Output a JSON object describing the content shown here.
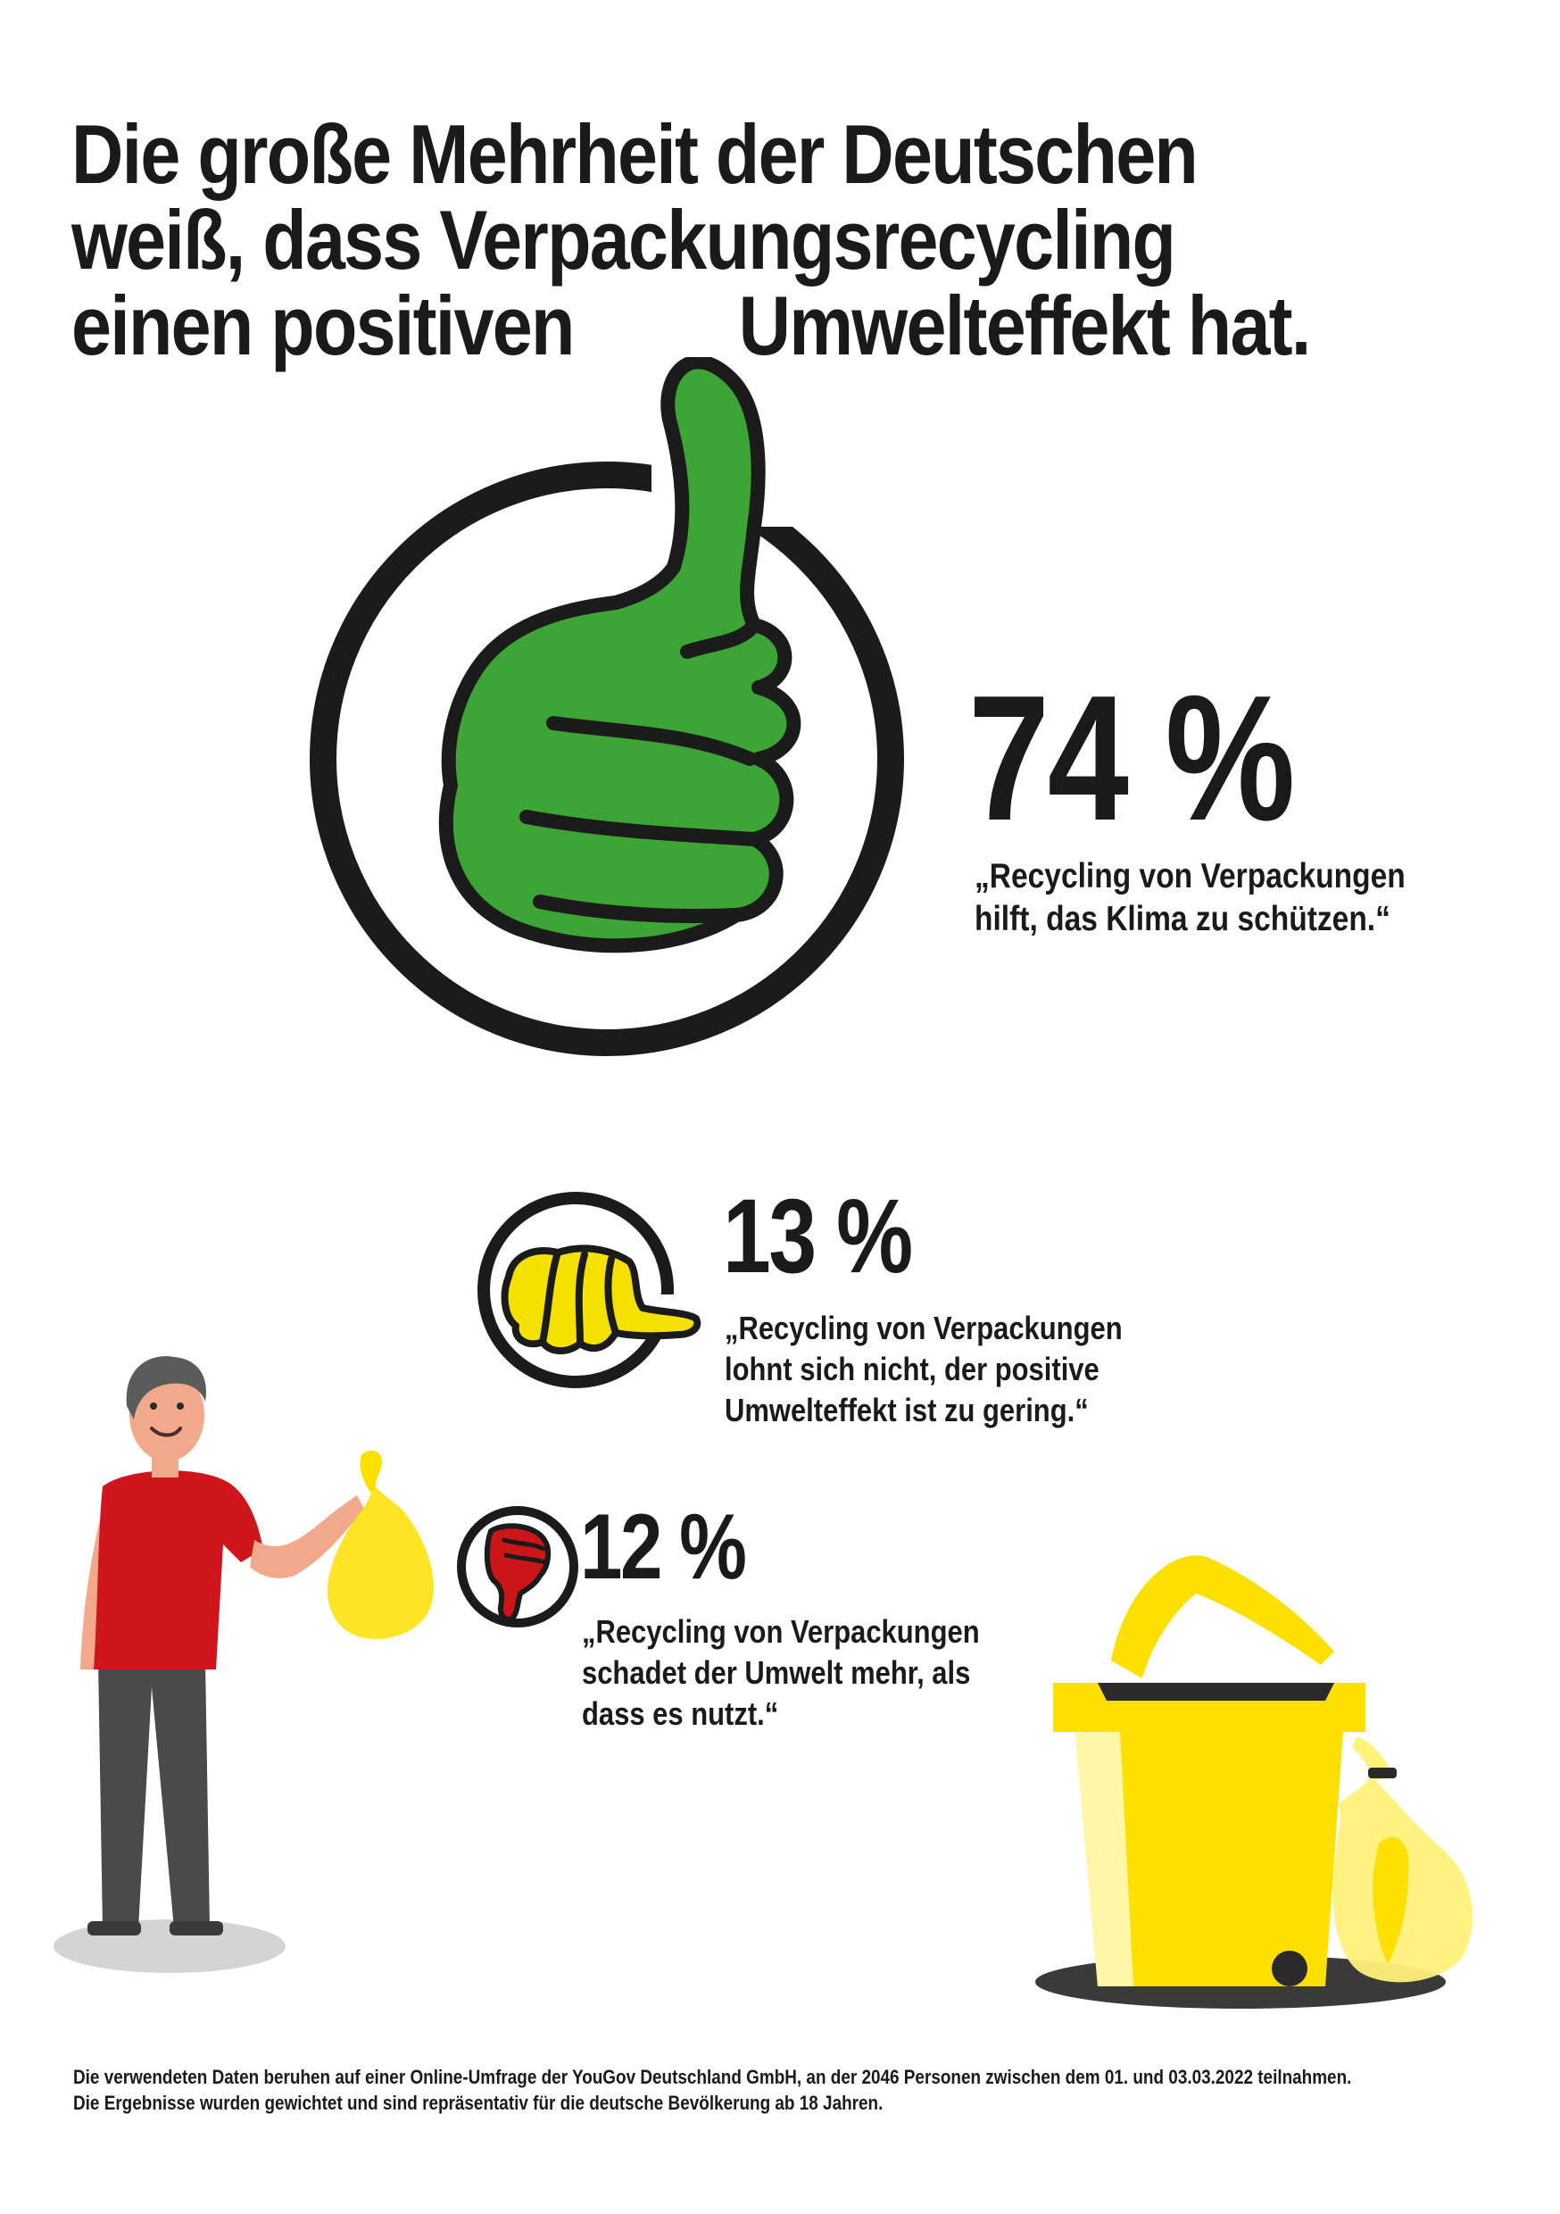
{
  "headline": {
    "line1": "Die große Mehrheit der Deutschen",
    "line2": "weiß, dass Verpackungsrecycling",
    "line3_part1": "einen positiven",
    "line3_part2": "Umwelteffekt hat."
  },
  "chart_data": {
    "type": "table",
    "title": "Die große Mehrheit der Deutschen weiß, dass Verpackungsrecycling einen positiven Umwelteffekt hat.",
    "rows": [
      {
        "percent_label": "74 %",
        "value": 74,
        "quote_lines": [
          "„Recycling von Verpackungen",
          "hilft, das Klima zu schützen.“"
        ]
      },
      {
        "percent_label": "13 %",
        "value": 13,
        "quote_lines": [
          "„Recycling von Verpackungen",
          "lohnt sich nicht, der positive",
          "Umwelteffekt ist zu gering.“"
        ]
      },
      {
        "percent_label": "12 %",
        "value": 12,
        "quote_lines": [
          "„Recycling von Verpackungen",
          "schadet der Umwelt mehr, als",
          "dass es nutzt.“"
        ]
      }
    ]
  },
  "icons": {
    "positive": "thumbs-up-icon",
    "neutral": "thumbs-sideways-icon",
    "negative": "thumbs-down-icon"
  },
  "colors": {
    "positive": "#3da535",
    "neutral": "#f5e100",
    "negative": "#cc1518",
    "bin": "#fde000",
    "shirt": "#cf161c"
  },
  "footnote": {
    "line1": "Die verwendeten Daten beruhen auf einer Online-Umfrage der YouGov Deutschland GmbH, an der 2046 Personen zwischen dem 01. und 03.03.2022 teilnahmen.",
    "line2": "Die Ergebnisse wurden gewichtet und sind repräsentativ für die deutsche Bevölkerung ab 18 Jahren."
  }
}
